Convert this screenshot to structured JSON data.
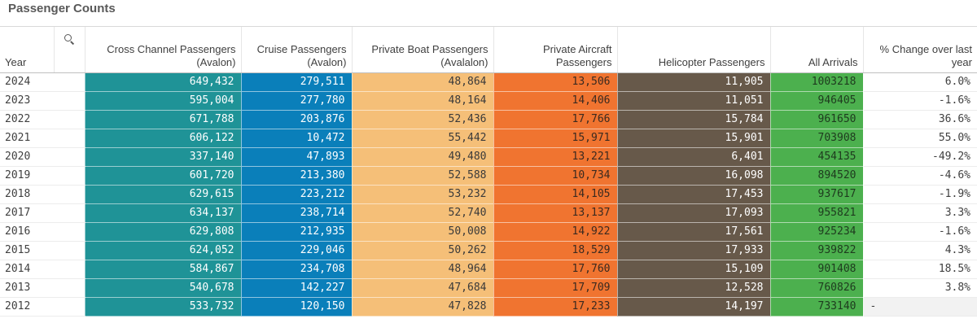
{
  "title": "Passenger Counts",
  "columns": {
    "year": "Year",
    "cross": [
      "Cross Channel Passengers",
      "(Avalon)"
    ],
    "cruise": [
      "Cruise Passengers",
      "(Avalon)"
    ],
    "boat": [
      "Private Boat Passengers",
      "(Avalalon)"
    ],
    "aircraft": [
      "Private Aircraft",
      "Passengers"
    ],
    "heli": "Helicopter Passengers",
    "arrivals": "All Arrivals",
    "pct": [
      "% Change over last",
      "year"
    ]
  },
  "colors": {
    "cross": "#1f9397",
    "cruise": "#0a7fba",
    "boat": "#f5bf78",
    "aircraft": "#f07430",
    "heli": "#67594a",
    "arrivals": "#4cb04e"
  },
  "rows": [
    {
      "year": "2024",
      "cross": "649,432",
      "cruise": "279,511",
      "boat": "48,864",
      "aircraft": "13,506",
      "heli": "11,905",
      "arrivals": "1003218",
      "pct": "6.0%"
    },
    {
      "year": "2023",
      "cross": "595,004",
      "cruise": "277,780",
      "boat": "48,164",
      "aircraft": "14,406",
      "heli": "11,051",
      "arrivals": "946405",
      "pct": "-1.6%"
    },
    {
      "year": "2022",
      "cross": "671,788",
      "cruise": "203,876",
      "boat": "52,436",
      "aircraft": "17,766",
      "heli": "15,784",
      "arrivals": "961650",
      "pct": "36.6%"
    },
    {
      "year": "2021",
      "cross": "606,122",
      "cruise": "10,472",
      "boat": "55,442",
      "aircraft": "15,971",
      "heli": "15,901",
      "arrivals": "703908",
      "pct": "55.0%"
    },
    {
      "year": "2020",
      "cross": "337,140",
      "cruise": "47,893",
      "boat": "49,480",
      "aircraft": "13,221",
      "heli": "6,401",
      "arrivals": "454135",
      "pct": "-49.2%"
    },
    {
      "year": "2019",
      "cross": "601,720",
      "cruise": "213,380",
      "boat": "52,588",
      "aircraft": "10,734",
      "heli": "16,098",
      "arrivals": "894520",
      "pct": "-4.6%"
    },
    {
      "year": "2018",
      "cross": "629,615",
      "cruise": "223,212",
      "boat": "53,232",
      "aircraft": "14,105",
      "heli": "17,453",
      "arrivals": "937617",
      "pct": "-1.9%"
    },
    {
      "year": "2017",
      "cross": "634,137",
      "cruise": "238,714",
      "boat": "52,740",
      "aircraft": "13,137",
      "heli": "17,093",
      "arrivals": "955821",
      "pct": "3.3%"
    },
    {
      "year": "2016",
      "cross": "629,808",
      "cruise": "212,935",
      "boat": "50,008",
      "aircraft": "14,922",
      "heli": "17,561",
      "arrivals": "925234",
      "pct": "-1.6%"
    },
    {
      "year": "2015",
      "cross": "624,052",
      "cruise": "229,046",
      "boat": "50,262",
      "aircraft": "18,529",
      "heli": "17,933",
      "arrivals": "939822",
      "pct": "4.3%"
    },
    {
      "year": "2014",
      "cross": "584,867",
      "cruise": "234,708",
      "boat": "48,964",
      "aircraft": "17,760",
      "heli": "15,109",
      "arrivals": "901408",
      "pct": "18.5%"
    },
    {
      "year": "2013",
      "cross": "540,678",
      "cruise": "142,227",
      "boat": "47,684",
      "aircraft": "17,709",
      "heli": "12,528",
      "arrivals": "760826",
      "pct": "3.8%"
    },
    {
      "year": "2012",
      "cross": "533,732",
      "cruise": "120,150",
      "boat": "47,828",
      "aircraft": "17,233",
      "heli": "14,197",
      "arrivals": "733140",
      "pct": "-"
    }
  ]
}
